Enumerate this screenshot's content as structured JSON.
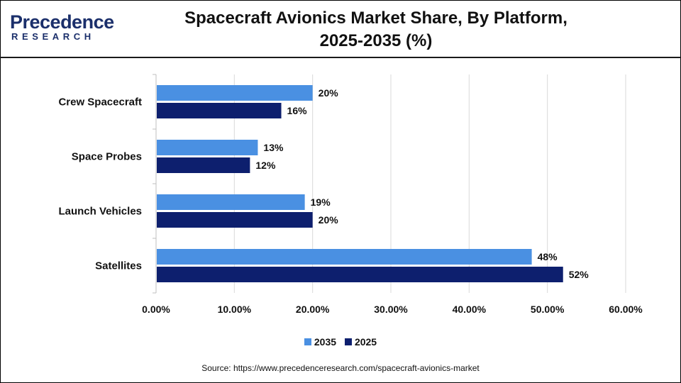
{
  "logo": {
    "main": "Precedence",
    "sub": "RESEARCH",
    "color": "#1b2f6b"
  },
  "title_line1": "Spacecraft Avionics Market Share, By Platform,",
  "title_line2": "2025-2035 (%)",
  "source": "Source: https://www.precedenceresearch.com/spacecraft-avionics-market",
  "chart_data": {
    "type": "bar",
    "orientation": "horizontal",
    "title": "Spacecraft Avionics Market Share, By Platform, 2025-2035 (%)",
    "categories": [
      "Crew Spacecraft",
      "Space Probes",
      "Launch Vehicles",
      "Satellites"
    ],
    "series": [
      {
        "name": "2035",
        "color": "#4a90e2",
        "values": [
          20,
          13,
          19,
          48
        ],
        "labels": [
          "20%",
          "13%",
          "19%",
          "48%"
        ]
      },
      {
        "name": "2025",
        "color": "#0d1f6e",
        "values": [
          16,
          12,
          20,
          52
        ],
        "labels": [
          "16%",
          "12%",
          "20%",
          "52%"
        ]
      }
    ],
    "xlim": [
      0,
      60
    ],
    "xticks": [
      0,
      10,
      20,
      30,
      40,
      50,
      60
    ],
    "xtick_labels": [
      "0.00%",
      "10.00%",
      "20.00%",
      "30.00%",
      "40.00%",
      "50.00%",
      "60.00%"
    ],
    "xlabel": "",
    "ylabel": "",
    "grid": "vertical",
    "legend": "bottom-center"
  }
}
